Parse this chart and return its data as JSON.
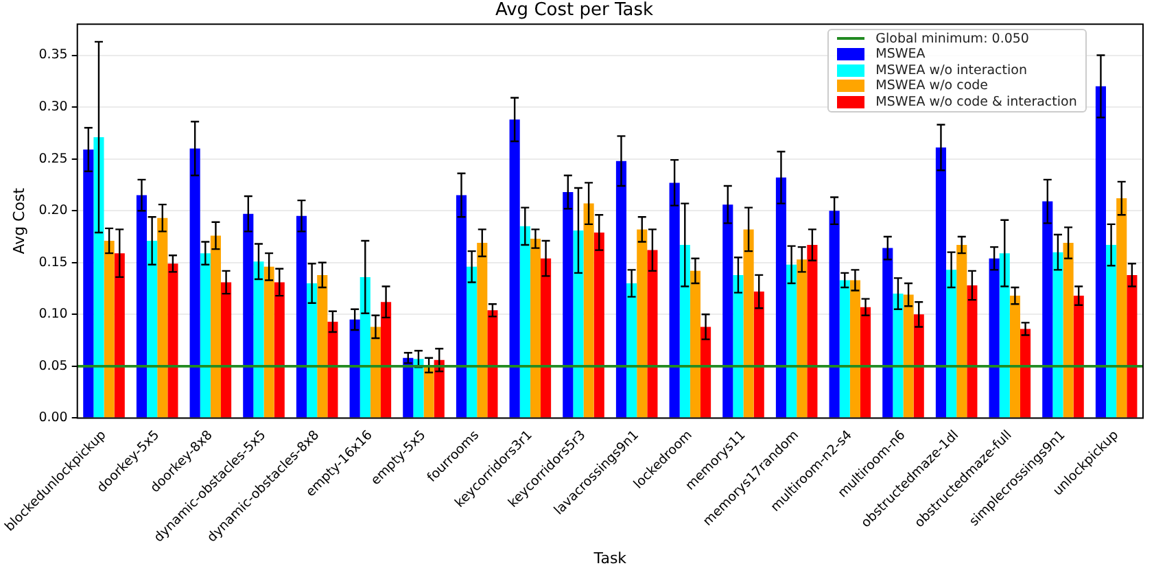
{
  "chart_data": {
    "type": "bar",
    "title": "Avg Cost per Task",
    "xlabel": "Task",
    "ylabel": "Avg Cost",
    "categories": [
      "blockedunlockpickup",
      "doorkey-5x5",
      "doorkey-8x8",
      "dynamic-obstacles-5x5",
      "dynamic-obstacles-8x8",
      "empty-16x16",
      "empty-5x5",
      "fourrooms",
      "keycorridors3r1",
      "keycorridors5r3",
      "lavacrossings9n1",
      "lockedroom",
      "memorys11",
      "memorys17random",
      "multiroom-n2-s4",
      "multiroom-n6",
      "obstructedmaze-1dl",
      "obstructedmaze-full",
      "simplecrossings9n1",
      "unlockpickup"
    ],
    "series": [
      {
        "name": "MSWEA",
        "color": "#0000ff",
        "values": [
          0.259,
          0.215,
          0.26,
          0.197,
          0.195,
          0.095,
          0.058,
          0.215,
          0.288,
          0.218,
          0.248,
          0.227,
          0.206,
          0.232,
          0.2,
          0.164,
          0.261,
          0.154,
          0.209,
          0.32
        ],
        "errors": [
          0.021,
          0.015,
          0.026,
          0.017,
          0.015,
          0.01,
          0.005,
          0.021,
          0.021,
          0.016,
          0.024,
          0.022,
          0.018,
          0.025,
          0.013,
          0.011,
          0.022,
          0.011,
          0.021,
          0.03
        ]
      },
      {
        "name": "MSWEA w/o interaction",
        "color": "#00ffff",
        "values": [
          0.271,
          0.171,
          0.159,
          0.151,
          0.13,
          0.136,
          0.057,
          0.146,
          0.185,
          0.181,
          0.13,
          0.167,
          0.138,
          0.148,
          0.133,
          0.12,
          0.143,
          0.159,
          0.16,
          0.167
        ],
        "errors": [
          0.092,
          0.023,
          0.011,
          0.017,
          0.019,
          0.035,
          0.008,
          0.015,
          0.018,
          0.041,
          0.013,
          0.04,
          0.017,
          0.018,
          0.007,
          0.015,
          0.017,
          0.032,
          0.017,
          0.02
        ]
      },
      {
        "name": "MSWEA w/o code",
        "color": "#ffa500",
        "values": [
          0.171,
          0.193,
          0.176,
          0.146,
          0.138,
          0.088,
          0.051,
          0.169,
          0.173,
          0.207,
          0.182,
          0.142,
          0.182,
          0.153,
          0.133,
          0.119,
          0.167,
          0.118,
          0.169,
          0.212
        ],
        "errors": [
          0.012,
          0.013,
          0.013,
          0.013,
          0.012,
          0.011,
          0.007,
          0.013,
          0.009,
          0.02,
          0.012,
          0.012,
          0.021,
          0.012,
          0.01,
          0.011,
          0.008,
          0.008,
          0.015,
          0.016
        ]
      },
      {
        "name": "MSWEA w/o code & interaction",
        "color": "#ff0000",
        "values": [
          0.159,
          0.149,
          0.131,
          0.131,
          0.093,
          0.112,
          0.056,
          0.104,
          0.154,
          0.179,
          0.162,
          0.088,
          0.122,
          0.167,
          0.107,
          0.1,
          0.128,
          0.086,
          0.118,
          0.138
        ],
        "errors": [
          0.023,
          0.008,
          0.011,
          0.013,
          0.01,
          0.015,
          0.011,
          0.006,
          0.017,
          0.017,
          0.02,
          0.012,
          0.016,
          0.015,
          0.008,
          0.012,
          0.014,
          0.006,
          0.009,
          0.011
        ]
      }
    ],
    "ylim": [
      0,
      0.38
    ],
    "yticks": [
      {
        "value": 0,
        "label": "0.00"
      },
      0.05,
      {
        "value": 0.1,
        "label": "0.10"
      },
      0.15,
      {
        "value": 0.2,
        "label": "0.20"
      },
      0.25,
      {
        "value": 0.3,
        "label": "0.30"
      },
      0.35
    ],
    "ref_lines": [
      {
        "axis": "y",
        "value": 0.05,
        "label": "Global minimum: 0.050",
        "color": "#228b22"
      }
    ],
    "grid": "y",
    "legend": "top right"
  }
}
